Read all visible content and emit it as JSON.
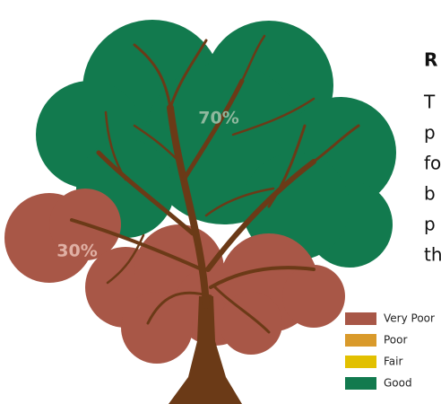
{
  "chart_data": {
    "type": "tree",
    "categories": [
      "Very Poor",
      "Poor",
      "Fair",
      "Good"
    ],
    "colors": [
      "#a85747",
      "#d99a2b",
      "#e2c000",
      "#127a4e"
    ],
    "values": [
      30,
      null,
      null,
      70
    ],
    "value_labels": [
      "30%",
      null,
      null,
      "70%"
    ]
  },
  "side_text": {
    "heading": "R",
    "lines": [
      "T",
      "p",
      "fo",
      "b",
      "p",
      "th"
    ]
  }
}
